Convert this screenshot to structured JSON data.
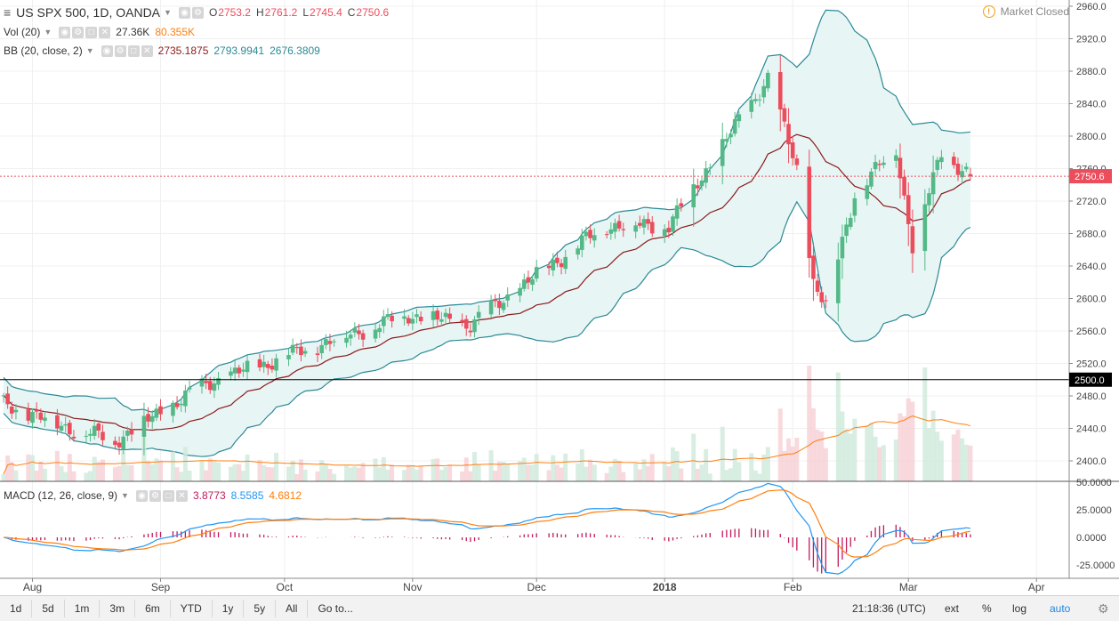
{
  "header": {
    "symbol": "US SPX 500, 1D, OANDA",
    "open_label": "O",
    "open": "2753.2",
    "high_label": "H",
    "high": "2761.2",
    "low_label": "L",
    "low": "2745.4",
    "close_label": "C",
    "close": "2750.6"
  },
  "indicators": {
    "vol": {
      "name": "Vol (20)",
      "v1": "27.36K",
      "v2": "80.355K"
    },
    "bb": {
      "name": "BB (20, close, 2)",
      "v1": "2735.1875",
      "v2": "2793.9941",
      "v3": "2676.3809"
    },
    "macd": {
      "name": "MACD (12, 26, close, 9)",
      "v1": "3.8773",
      "v2": "8.5585",
      "v3": "4.6812"
    }
  },
  "market_status": "Market Closed",
  "price_axis": {
    "ticks": [
      "2960.0",
      "2920.0",
      "2880.0",
      "2840.0",
      "2800.0",
      "2760.0",
      "2720.0",
      "2680.0",
      "2640.0",
      "2600.0",
      "2560.0",
      "2520.0",
      "2480.0",
      "2440.0",
      "2400.0"
    ],
    "current_price_label": "2750.6",
    "level_label": "2500.0"
  },
  "macd_axis": {
    "ticks": [
      "50.0000",
      "25.0000",
      "0.0000",
      "-25.0000"
    ]
  },
  "time_axis": {
    "labels": [
      "Aug",
      "Sep",
      "Oct",
      "Nov",
      "Dec",
      "2018",
      "Feb",
      "Mar",
      "Apr"
    ]
  },
  "toolbar": {
    "ranges": [
      "1d",
      "5d",
      "1m",
      "3m",
      "6m",
      "YTD",
      "1y",
      "5y",
      "All",
      "Go to..."
    ],
    "clock": "21:18:36 (UTC)",
    "ext": "ext",
    "pct": "%",
    "log": "log",
    "auto": "auto"
  },
  "colors": {
    "up": "#53b987",
    "down": "#eb4d5c",
    "bb_line": "#2a8a96",
    "bb_basis": "#8b1a1a",
    "bb_fill": "#e8f5f5",
    "macd": "#2196f3",
    "signal": "#ff7f0e",
    "hist": "#c2185b"
  },
  "chart_data": {
    "type": "candlestick",
    "title": "US SPX 500, 1D, OANDA",
    "ylim": [
      2400,
      2965
    ],
    "key_points": [
      {
        "date": "2017-07-25",
        "close": 2470
      },
      {
        "date": "2017-08-10",
        "close": 2440
      },
      {
        "date": "2017-08-21",
        "close": 2425
      },
      {
        "date": "2017-09-12",
        "close": 2495
      },
      {
        "date": "2017-10-02",
        "close": 2530
      },
      {
        "date": "2017-10-31",
        "close": 2580
      },
      {
        "date": "2017-11-15",
        "close": 2568
      },
      {
        "date": "2017-12-04",
        "close": 2640
      },
      {
        "date": "2017-12-18",
        "close": 2690
      },
      {
        "date": "2018-01-02",
        "close": 2690
      },
      {
        "date": "2018-01-26",
        "close": 2872
      },
      {
        "date": "2018-02-02",
        "close": 2760
      },
      {
        "date": "2018-02-06",
        "close": 2620
      },
      {
        "date": "2018-02-09",
        "close": 2590
      },
      {
        "date": "2018-02-16",
        "close": 2730
      },
      {
        "date": "2018-02-26",
        "close": 2785
      },
      {
        "date": "2018-03-02",
        "close": 2665
      },
      {
        "date": "2018-03-09",
        "close": 2780
      },
      {
        "date": "2018-03-16",
        "close": 2750.6
      }
    ],
    "last_bar": {
      "open": 2753.2,
      "high": 2761.2,
      "low": 2745.4,
      "close": 2750.6
    },
    "horizontal_level": 2500.0,
    "volume_axis_max_shown": "80.355K",
    "macd_ylim": [
      -30,
      50
    ]
  }
}
